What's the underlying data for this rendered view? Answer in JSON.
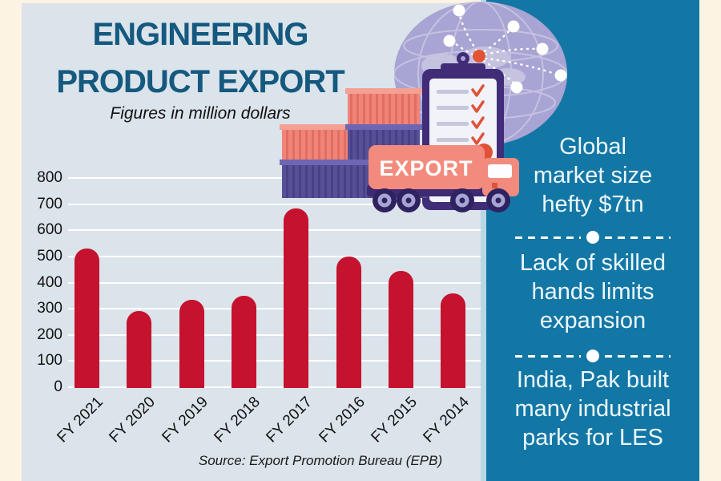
{
  "header": {
    "title": "ENGINEERING\nPRODUCT EXPORT",
    "subtitle": "Figures in million dollars"
  },
  "chart_data": {
    "type": "bar",
    "title": "ENGINEERING PRODUCT EXPORT",
    "subtitle": "Figures in million dollars",
    "categories": [
      "FY 2021",
      "FY 2020",
      "FY 2019",
      "FY 2018",
      "FY 2017",
      "FY 2016",
      "FY 2015",
      "FY 2014"
    ],
    "values": [
      530,
      290,
      335,
      350,
      685,
      500,
      445,
      360
    ],
    "xlabel": "",
    "ylabel": "",
    "ylim": [
      0,
      800
    ],
    "yticks": [
      0,
      100,
      200,
      300,
      400,
      500,
      600,
      700,
      800
    ],
    "grid": "horizontal white gridlines",
    "legend": "none",
    "source": "Source: Export Promotion Bureau (EPB)"
  },
  "sidebar": {
    "facts": [
      {
        "text": "Global\nmarket size\nhefty $7tn"
      },
      {
        "text": "Lack of skilled\nhands limits\nexpansion"
      },
      {
        "text": "India, Pak built\nmany industrial\nparks for LES"
      }
    ]
  },
  "illustration": {
    "truck_label": "EXPORT",
    "icons": [
      "globe-icon",
      "network-icon",
      "clipboard-checklist-icon",
      "shipping-containers-icon",
      "export-truck-icon"
    ]
  },
  "colors": {
    "frame": "#fdf3e3",
    "panel": "#dbe3eb",
    "title": "#15597f",
    "bar": "#c5122e",
    "gridline": "#ffffff",
    "sidebar_bg": "#1377a6",
    "sidebar_edge": "#b9d6e4",
    "sidebar_text": "#edf7fb"
  }
}
